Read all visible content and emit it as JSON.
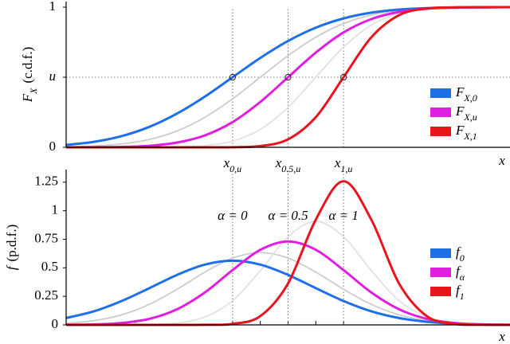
{
  "chart_data": [
    {
      "type": "line",
      "ylabel": {
        "symbol": "F",
        "sub": "X",
        "text": "(c.d.f.)"
      },
      "xlabel": "x",
      "x": [
        0,
        0.25,
        0.5,
        0.75,
        1,
        1.25,
        1.5,
        1.75,
        2,
        2.25,
        2.5,
        2.75,
        3,
        3.25,
        3.5,
        3.75,
        4
      ],
      "xlim": [
        0,
        4
      ],
      "ylim": [
        0,
        1.04
      ],
      "yticks": [
        0,
        {
          "value": 0.5,
          "label": "u"
        },
        1
      ],
      "xticks": [
        {
          "value": 1.5,
          "label": "x",
          "sub": "0,u"
        },
        {
          "value": 2,
          "label": "x",
          "sub": "0.5,u"
        },
        {
          "value": 2.5,
          "label": "x",
          "sub": "1,u"
        }
      ],
      "quantile_points": {
        "x": [
          1.5,
          2,
          2.5
        ],
        "y": [
          0.5,
          0.5,
          0.5
        ]
      },
      "legend": "lower right",
      "series": [
        {
          "color": "#cccccc",
          "values": [
            0.003,
            0.009,
            0.024,
            0.056,
            0.117,
            0.214,
            0.346,
            0.5,
            0.654,
            0.786,
            0.883,
            0.944,
            0.976,
            0.991,
            0.997,
            0.999,
            1.0
          ]
        },
        {
          "color": "#e2e2e2",
          "values": [
            0,
            0,
            0,
            0,
            0.002,
            0.012,
            0.044,
            0.128,
            0.285,
            0.5,
            0.715,
            0.872,
            0.956,
            0.988,
            0.998,
            1.0,
            1.0
          ]
        },
        {
          "name": "F",
          "name_sub": "X,0",
          "color": "#1f6fe8",
          "values": [
            0.017,
            0.039,
            0.08,
            0.146,
            0.241,
            0.362,
            0.5,
            0.638,
            0.759,
            0.854,
            0.92,
            0.961,
            0.983,
            0.993,
            0.998,
            0.999,
            1.0
          ]
        },
        {
          "name": "F",
          "name_sub": "X,u",
          "color": "#e01ee0",
          "values": [
            0,
            0.001,
            0.003,
            0.011,
            0.034,
            0.085,
            0.18,
            0.324,
            0.5,
            0.676,
            0.82,
            0.915,
            0.966,
            0.989,
            0.997,
            0.999,
            1.0
          ]
        },
        {
          "name": "F",
          "name_sub": "X,1",
          "color": "#e8141e",
          "values": [
            0,
            0,
            0,
            0,
            0,
            0,
            0.001,
            0.009,
            0.057,
            0.215,
            0.5,
            0.785,
            0.943,
            0.991,
            0.999,
            1.0,
            1.0
          ]
        }
      ]
    },
    {
      "type": "line",
      "ylabel": {
        "symbol": "f",
        "text": "(p.d.f.)"
      },
      "xlabel": "x",
      "x": [
        0,
        0.25,
        0.5,
        0.75,
        1,
        1.25,
        1.5,
        1.75,
        2,
        2.25,
        2.5,
        2.75,
        3,
        3.25,
        3.5,
        3.75,
        4
      ],
      "xlim": [
        0,
        4
      ],
      "ylim": [
        0,
        1.36
      ],
      "yticks": [
        0,
        0.25,
        0.5,
        0.75,
        1,
        1.25
      ],
      "xtick_marks": [
        1.5,
        1.75,
        2,
        2.25,
        2.5
      ],
      "annotations": [
        {
          "x": 1.5,
          "text": "α = 0"
        },
        {
          "x": 2,
          "text": "α = 0.5"
        },
        {
          "x": 2.5,
          "text": "α = 1"
        }
      ],
      "legend": "lower right",
      "series": [
        {
          "color": "#cccccc",
          "values": [
            0.013,
            0.037,
            0.088,
            0.18,
            0.312,
            0.462,
            0.585,
            0.633,
            0.585,
            0.462,
            0.312,
            0.18,
            0.088,
            0.037,
            0.013,
            0.004,
            0.001
          ]
        },
        {
          "color": "#e2e2e2",
          "values": [
            0,
            0,
            0,
            0.003,
            0.016,
            0.069,
            0.212,
            0.476,
            0.772,
            0.907,
            0.772,
            0.476,
            0.212,
            0.069,
            0.016,
            0.003,
            0
          ]
        },
        {
          "name": "f",
          "name_sub": "0",
          "color": "#1f6fe8",
          "values": [
            0.06,
            0.119,
            0.209,
            0.322,
            0.438,
            0.528,
            0.562,
            0.528,
            0.438,
            0.322,
            0.209,
            0.119,
            0.06,
            0.027,
            0.011,
            0.004,
            0.001
          ]
        },
        {
          "name": "f",
          "name_sub": "α",
          "color": "#e01ee0",
          "values": [
            0.001,
            0.004,
            0.017,
            0.053,
            0.137,
            0.284,
            0.48,
            0.658,
            0.731,
            0.658,
            0.48,
            0.284,
            0.137,
            0.053,
            0.017,
            0.004,
            0.001
          ]
        },
        {
          "name": "f",
          "name_sub": "1",
          "color": "#e8141e",
          "values": [
            0,
            0,
            0,
            0,
            0,
            0.001,
            0.009,
            0.077,
            0.363,
            0.922,
            1.258,
            0.922,
            0.363,
            0.077,
            0.009,
            0.001,
            0
          ]
        }
      ]
    }
  ]
}
